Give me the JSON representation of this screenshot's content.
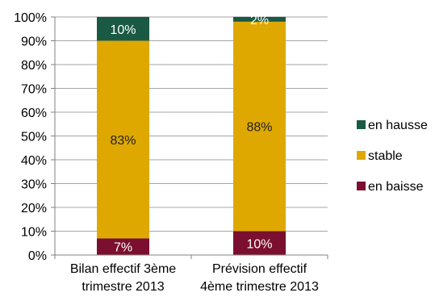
{
  "chart_data": {
    "type": "bar",
    "stacked": true,
    "categories": [
      [
        "Bilan effectif 3ème",
        "trimestre 2013"
      ],
      [
        "Prévision effectif",
        "4ème trimestre 2013"
      ]
    ],
    "series": [
      {
        "name": "en baisse",
        "values": [
          7,
          10
        ],
        "labels": [
          "7%",
          "10%"
        ],
        "color": "#7b0f2f",
        "label_color": "#ffffff"
      },
      {
        "name": "stable",
        "values": [
          83,
          88
        ],
        "labels": [
          "83%",
          "88%"
        ],
        "color": "#dfa800",
        "label_color": "#222222"
      },
      {
        "name": "en hausse",
        "values": [
          10,
          2
        ],
        "labels": [
          "10%",
          "2%"
        ],
        "color": "#1a5a45",
        "label_color": "#ffffff"
      }
    ],
    "yticks": [
      "0%",
      "10%",
      "20%",
      "30%",
      "40%",
      "50%",
      "60%",
      "70%",
      "80%",
      "90%",
      "100%"
    ],
    "ylim": [
      0,
      100
    ],
    "grid": true,
    "legend": {
      "position": "right",
      "order": [
        "en hausse",
        "stable",
        "en baisse"
      ]
    },
    "colors": {
      "grid": "#a6a6a6",
      "axis": "#808080",
      "text": "#000000"
    }
  }
}
